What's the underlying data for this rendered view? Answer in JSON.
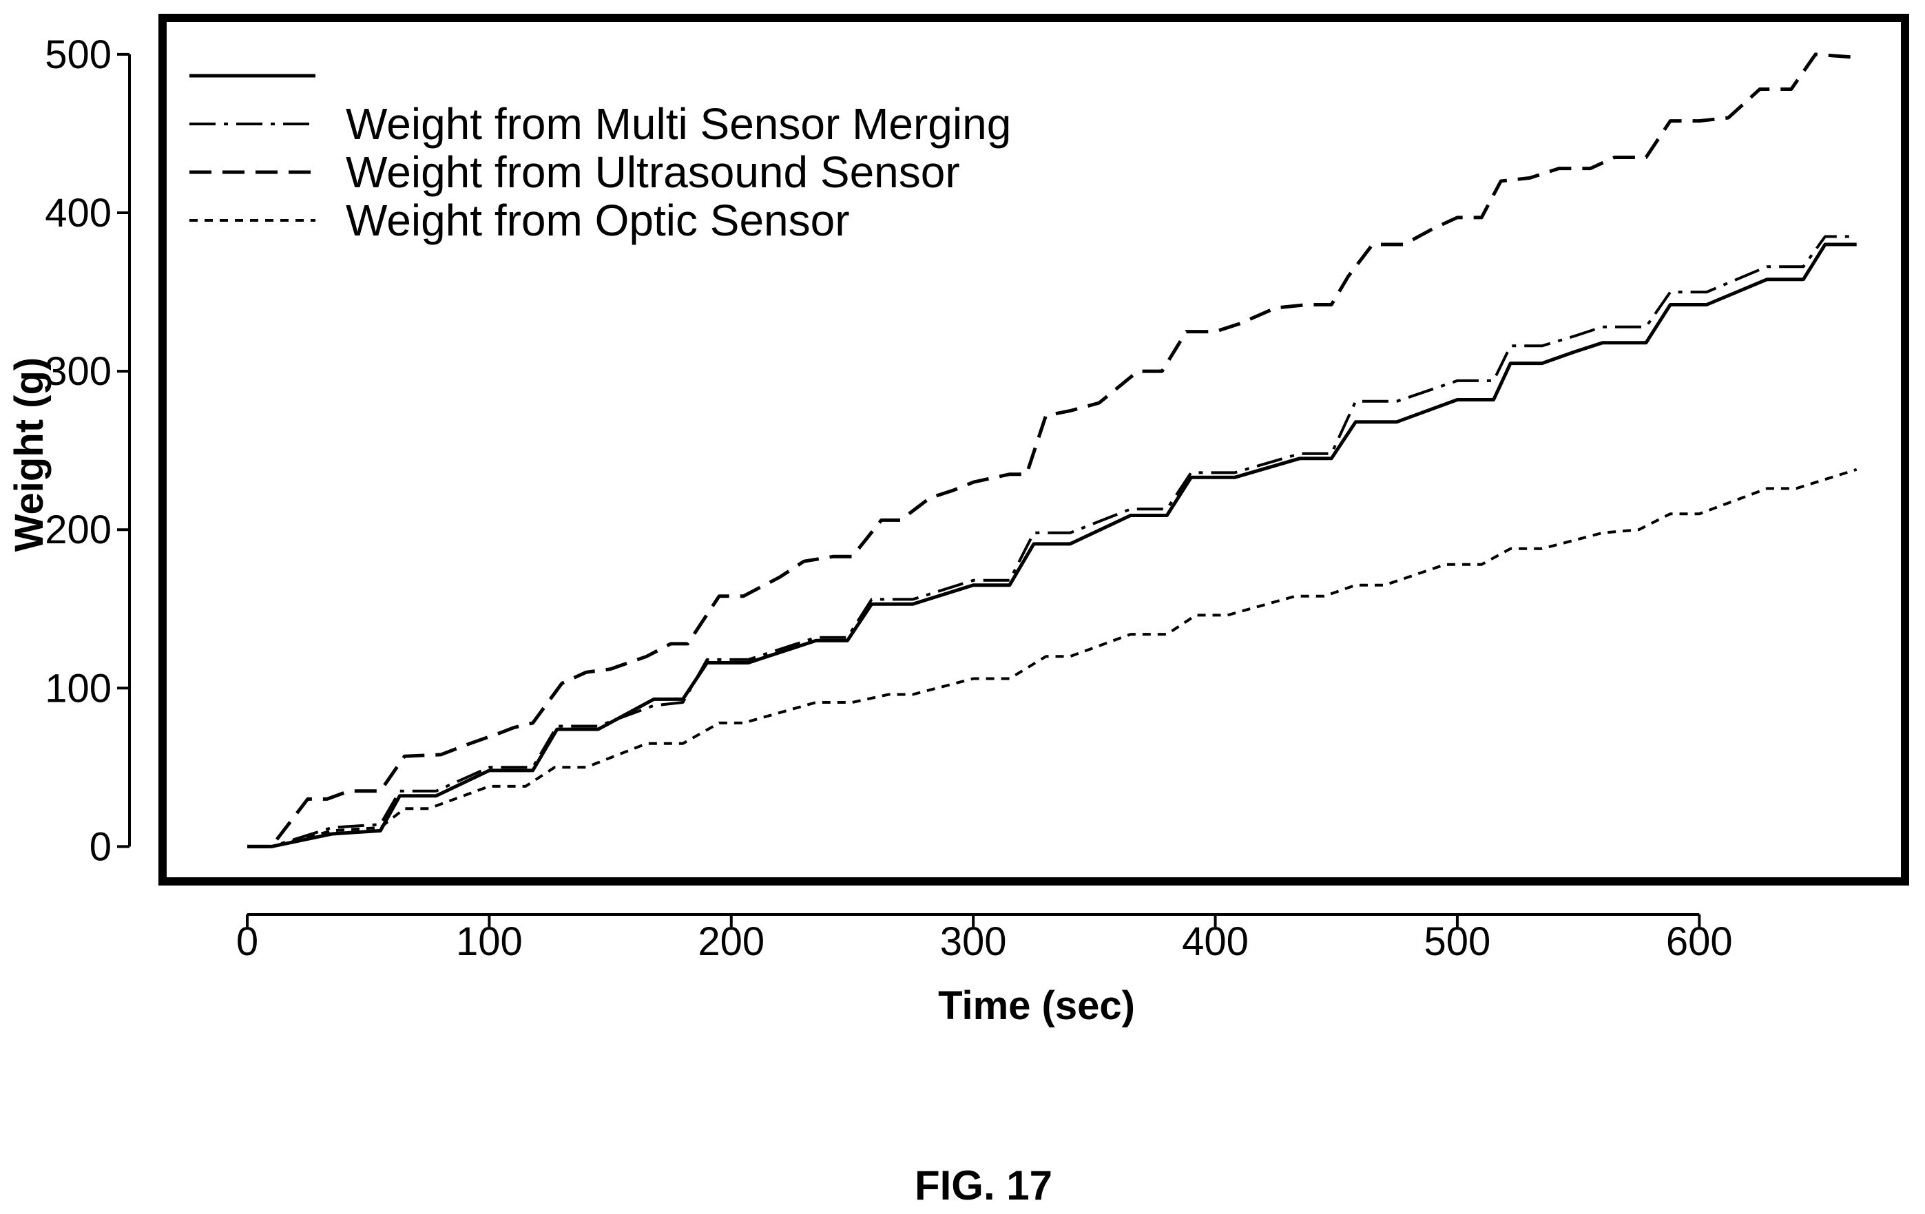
{
  "figure_caption": "FIG. 17",
  "chart_data": {
    "type": "line",
    "title": "",
    "xlabel": "Time (sec)",
    "ylabel": "Weight (g)",
    "xlim": [
      -35,
      685
    ],
    "ylim": [
      -22,
      523
    ],
    "xticks": [
      0,
      100,
      200,
      300,
      400,
      500,
      600
    ],
    "yticks": [
      0,
      100,
      200,
      300,
      400,
      500
    ],
    "grid": false,
    "legend": {
      "position": "top-left"
    },
    "series": [
      {
        "name": "",
        "style": "solid",
        "x": [
          0,
          10,
          35,
          55,
          63,
          78,
          100,
          118,
          128,
          145,
          168,
          180,
          190,
          207,
          235,
          248,
          258,
          275,
          300,
          315,
          325,
          340,
          365,
          380,
          390,
          408,
          435,
          448,
          458,
          475,
          500,
          515,
          522,
          535,
          548,
          560,
          578,
          588,
          603,
          628,
          643,
          652,
          665
        ],
        "y": [
          0,
          0,
          8,
          10,
          32,
          32,
          48,
          48,
          74,
          74,
          93,
          93,
          116,
          116,
          130,
          130,
          153,
          153,
          165,
          165,
          191,
          191,
          209,
          209,
          233,
          233,
          245,
          245,
          268,
          268,
          282,
          282,
          305,
          305,
          312,
          318,
          318,
          342,
          342,
          358,
          358,
          380,
          380
        ]
      },
      {
        "name": "Weight from Multi Sensor Merging",
        "style": "dashdot",
        "x": [
          0,
          10,
          35,
          55,
          63,
          78,
          100,
          118,
          128,
          145,
          168,
          180,
          190,
          207,
          235,
          248,
          258,
          275,
          300,
          315,
          325,
          340,
          365,
          380,
          390,
          408,
          435,
          448,
          458,
          475,
          500,
          515,
          522,
          535,
          548,
          560,
          578,
          588,
          603,
          628,
          643,
          652,
          665
        ],
        "y": [
          0,
          0,
          12,
          14,
          35,
          35,
          50,
          50,
          76,
          76,
          89,
          91,
          118,
          118,
          132,
          132,
          156,
          156,
          168,
          168,
          198,
          198,
          213,
          213,
          236,
          236,
          248,
          248,
          281,
          281,
          294,
          294,
          316,
          316,
          322,
          328,
          328,
          350,
          350,
          366,
          366,
          385,
          385
        ]
      },
      {
        "name": "Weight from Ultrasound Sensor",
        "style": "dashed",
        "x": [
          0,
          10,
          25,
          33,
          42,
          55,
          65,
          80,
          92,
          105,
          110,
          118,
          130,
          140,
          150,
          165,
          175,
          182,
          195,
          205,
          220,
          230,
          242,
          250,
          262,
          270,
          282,
          292,
          300,
          315,
          322,
          330,
          340,
          352,
          368,
          378,
          388,
          400,
          410,
          425,
          438,
          448,
          455,
          465,
          478,
          490,
          500,
          510,
          518,
          530,
          542,
          555,
          565,
          578,
          588,
          600,
          612,
          625,
          638,
          648,
          665
        ],
        "y": [
          0,
          0,
          30,
          30,
          35,
          35,
          57,
          58,
          65,
          72,
          75,
          78,
          103,
          110,
          112,
          120,
          128,
          128,
          158,
          158,
          170,
          180,
          183,
          183,
          206,
          206,
          220,
          225,
          230,
          235,
          235,
          272,
          275,
          280,
          300,
          300,
          325,
          325,
          330,
          340,
          342,
          342,
          360,
          380,
          380,
          390,
          397,
          397,
          420,
          422,
          428,
          428,
          435,
          435,
          458,
          458,
          460,
          478,
          478,
          500,
          498
        ]
      },
      {
        "name": "Weight from Optic Sensor",
        "style": "dotted",
        "x": [
          0,
          10,
          35,
          55,
          65,
          75,
          100,
          115,
          127,
          140,
          165,
          180,
          195,
          205,
          235,
          250,
          265,
          275,
          300,
          315,
          330,
          340,
          365,
          380,
          392,
          405,
          433,
          445,
          458,
          470,
          495,
          510,
          522,
          535,
          560,
          575,
          588,
          600,
          628,
          640,
          665
        ],
        "y": [
          0,
          0,
          10,
          12,
          24,
          24,
          38,
          38,
          50,
          50,
          65,
          65,
          78,
          78,
          91,
          91,
          96,
          96,
          106,
          106,
          120,
          120,
          134,
          134,
          146,
          146,
          158,
          158,
          165,
          165,
          178,
          178,
          188,
          188,
          198,
          200,
          210,
          210,
          226,
          226,
          238
        ]
      }
    ]
  }
}
